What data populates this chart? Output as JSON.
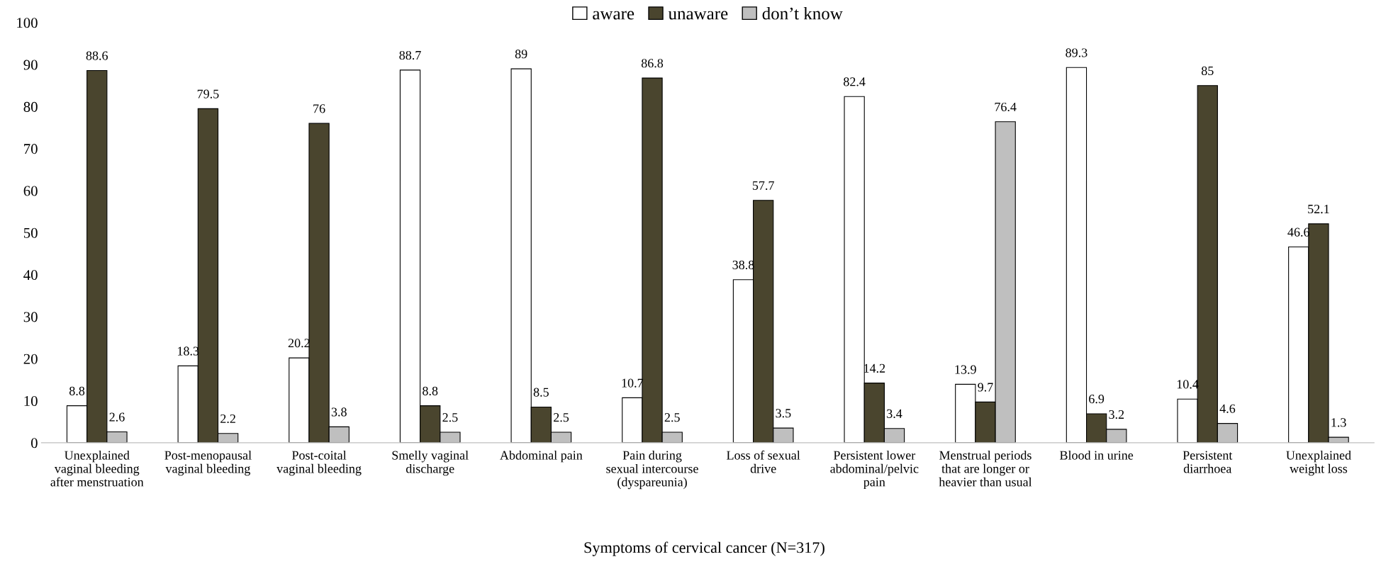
{
  "chart_data": {
    "type": "bar",
    "xlabel": "Symptoms of cervical cancer (N=317)",
    "categories": [
      "Unexplained\nvaginal bleeding\nafter menstruation",
      "Post-menopausal\nvaginal bleeding",
      "Post-coital\nvaginal bleeding",
      "Smelly vaginal\ndischarge",
      "Abdominal pain",
      "Pain during\nsexual intercourse\n(dyspareunia)",
      "Loss of sexual\ndrive",
      "Persistent lower\nabdominal/pelvic\npain",
      "Menstrual periods\nthat are longer or\nheavier than usual",
      "Blood in urine",
      "Persistent\ndiarrhoea",
      "Unexplained\nweight loss"
    ],
    "series": [
      {
        "name": "aware",
        "color": "#ffffff",
        "values": [
          8.8,
          18.3,
          20.2,
          88.7,
          89,
          10.7,
          38.8,
          82.4,
          13.9,
          89.3,
          10.4,
          46.6
        ]
      },
      {
        "name": "unaware",
        "color": "#4a452e",
        "values": [
          88.6,
          79.5,
          76,
          8.8,
          8.5,
          86.8,
          57.7,
          14.2,
          9.7,
          6.9,
          85,
          52.1
        ]
      },
      {
        "name": "don’t know",
        "color": "#bfbfbf",
        "values": [
          2.6,
          2.2,
          3.8,
          2.5,
          2.5,
          2.5,
          3.5,
          3.4,
          76.4,
          3.2,
          4.6,
          1.3
        ]
      }
    ],
    "ylim": [
      0,
      100
    ],
    "yticks": [
      0,
      10,
      20,
      30,
      40,
      50,
      60,
      70,
      80,
      90,
      100
    ],
    "data_labels": true,
    "legend": "top",
    "grid": false
  }
}
